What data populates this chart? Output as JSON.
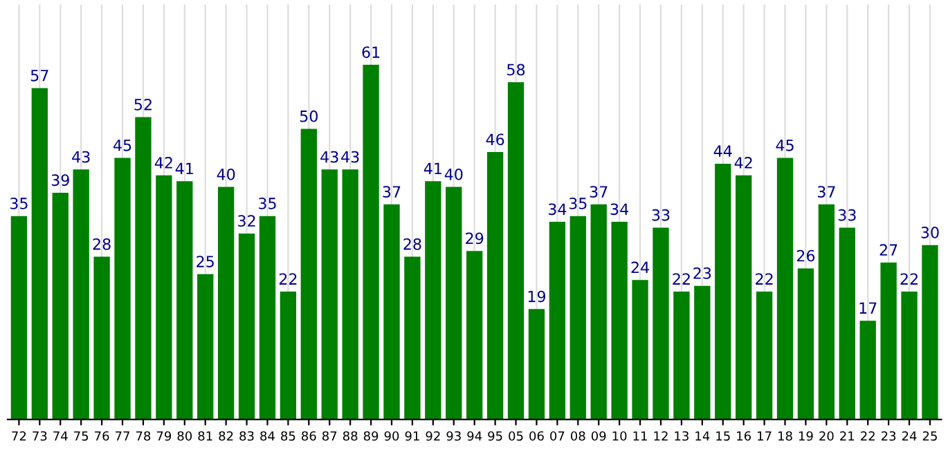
{
  "chart_data": {
    "type": "bar",
    "categories": [
      "72",
      "73",
      "74",
      "75",
      "76",
      "77",
      "78",
      "79",
      "80",
      "81",
      "82",
      "83",
      "84",
      "85",
      "86",
      "87",
      "88",
      "89",
      "90",
      "91",
      "92",
      "93",
      "94",
      "95",
      "05",
      "06",
      "07",
      "08",
      "09",
      "10",
      "11",
      "12",
      "13",
      "14",
      "15",
      "16",
      "17",
      "18",
      "19",
      "20",
      "21",
      "22",
      "23",
      "24",
      "25"
    ],
    "values": [
      35,
      57,
      39,
      43,
      28,
      45,
      52,
      42,
      41,
      25,
      40,
      32,
      35,
      22,
      50,
      43,
      43,
      61,
      37,
      28,
      41,
      40,
      29,
      46,
      58,
      19,
      34,
      35,
      37,
      34,
      24,
      33,
      22,
      23,
      44,
      42,
      22,
      45,
      26,
      37,
      33,
      17,
      27,
      22,
      30
    ],
    "color": "#008000",
    "data_labels": true,
    "grid": "x"
  }
}
